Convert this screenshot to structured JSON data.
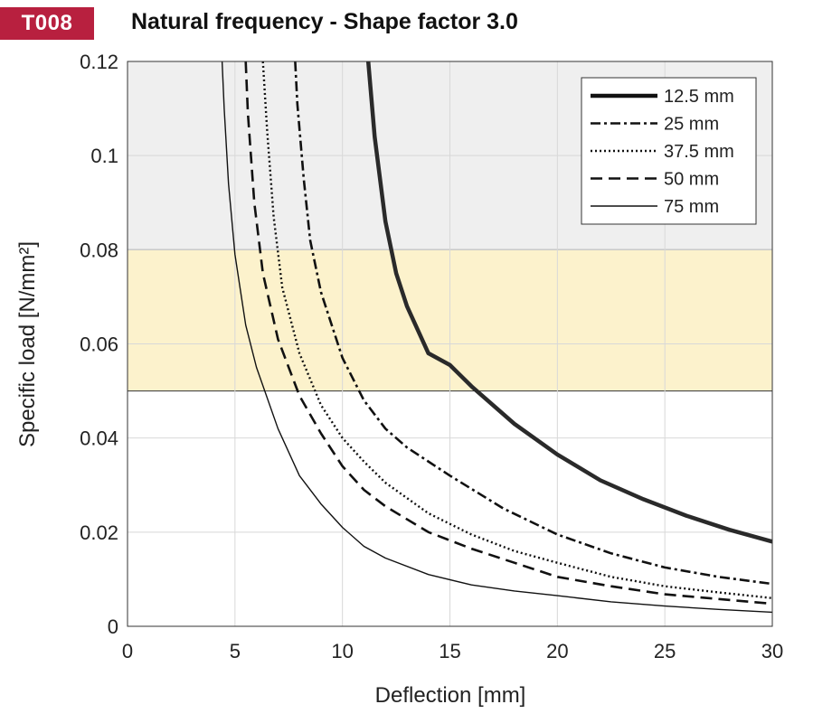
{
  "header": {
    "badge": "T008",
    "title": "Natural frequency - Shape factor 3.0"
  },
  "colors": {
    "badge_bg": "#b8203f",
    "upper_band": "#efefef",
    "middle_band": "#fcf2cc",
    "curve": "#111111"
  },
  "chart_data": {
    "type": "line",
    "title": "Natural frequency - Shape factor 3.0",
    "xlabel": "Deflection  [mm]",
    "ylabel": "Specific load [N/mm²]",
    "xlim": [
      0,
      30
    ],
    "ylim": [
      0,
      0.12
    ],
    "xticks": [
      0,
      5,
      10,
      15,
      20,
      25,
      30
    ],
    "yticks": [
      0,
      0.02,
      0.04,
      0.06,
      0.08,
      0.1,
      0.12
    ],
    "xtick_labels": [
      "0",
      "5",
      "10",
      "15",
      "20",
      "25",
      "30"
    ],
    "ytick_labels": [
      "0",
      "0.02",
      "0.04",
      "0.06",
      "0.08",
      "0.1",
      "0.12"
    ],
    "grid": true,
    "legend_position": "top-right",
    "bands": [
      {
        "y0": 0.05,
        "y1": 0.08,
        "color": "#fcf2cc"
      },
      {
        "y0": 0.08,
        "y1": 0.12,
        "color": "#efefef"
      }
    ],
    "series": [
      {
        "name": "12.5 mm",
        "style": "solid-thick",
        "x": [
          11.2,
          11.5,
          12,
          12.5,
          13,
          14,
          15,
          16,
          18,
          20,
          22,
          24,
          26,
          28,
          30
        ],
        "y": [
          0.12,
          0.104,
          0.086,
          0.075,
          0.068,
          0.058,
          0.0555,
          0.051,
          0.043,
          0.0365,
          0.031,
          0.027,
          0.0235,
          0.0205,
          0.018
        ]
      },
      {
        "name": "25 mm",
        "style": "dashdot",
        "x": [
          7.8,
          7.9,
          8.2,
          8.5,
          9,
          10,
          11,
          12,
          13,
          15,
          17.5,
          20,
          22.5,
          25,
          27.5,
          30
        ],
        "y": [
          0.12,
          0.111,
          0.095,
          0.082,
          0.071,
          0.057,
          0.048,
          0.042,
          0.038,
          0.032,
          0.025,
          0.0195,
          0.0155,
          0.0125,
          0.0105,
          0.009
        ]
      },
      {
        "name": "37.5 mm",
        "style": "dotted",
        "x": [
          6.3,
          6.5,
          6.8,
          7.2,
          8,
          9,
          10,
          11,
          12,
          14,
          16,
          18,
          20,
          22.5,
          25,
          27.5,
          30
        ],
        "y": [
          0.12,
          0.105,
          0.087,
          0.072,
          0.058,
          0.047,
          0.04,
          0.035,
          0.0305,
          0.024,
          0.0195,
          0.016,
          0.0135,
          0.0105,
          0.0085,
          0.0072,
          0.006
        ]
      },
      {
        "name": "50 mm",
        "style": "dashed",
        "x": [
          5.5,
          5.6,
          5.9,
          6.3,
          7,
          8,
          9,
          10,
          11,
          12,
          14,
          16,
          18,
          20,
          22.5,
          25,
          27.5,
          30
        ],
        "y": [
          0.12,
          0.109,
          0.09,
          0.075,
          0.061,
          0.049,
          0.041,
          0.034,
          0.029,
          0.0255,
          0.02,
          0.0165,
          0.0135,
          0.0105,
          0.0085,
          0.0068,
          0.0058,
          0.0048
        ]
      },
      {
        "name": "75 mm",
        "style": "solid-thin",
        "x": [
          4.4,
          4.5,
          4.7,
          5,
          5.5,
          6,
          7,
          8,
          9,
          10,
          11,
          12,
          14,
          16,
          18,
          20,
          22.5,
          25,
          27.5,
          30
        ],
        "y": [
          0.12,
          0.11,
          0.094,
          0.079,
          0.064,
          0.055,
          0.042,
          0.032,
          0.026,
          0.021,
          0.017,
          0.0145,
          0.011,
          0.0088,
          0.0075,
          0.0065,
          0.0052,
          0.0043,
          0.0036,
          0.003
        ]
      }
    ]
  }
}
